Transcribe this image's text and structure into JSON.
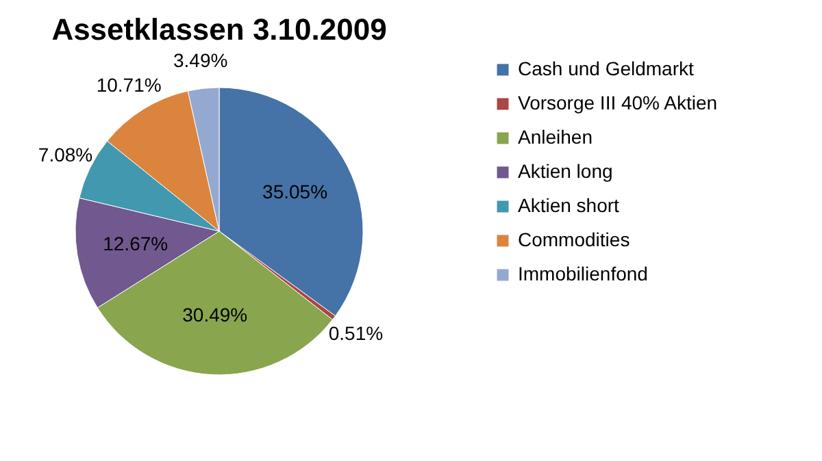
{
  "chart_data": {
    "type": "pie",
    "title": "Assetklassen 3.10.2009",
    "categories": [
      "Cash und Geldmarkt",
      "Vorsorge III 40% Aktien",
      "Anleihen",
      "Aktien long",
      "Aktien short",
      "Commodities",
      "Immobilienfond"
    ],
    "values": [
      35.05,
      0.51,
      30.49,
      12.67,
      7.08,
      10.71,
      3.49
    ],
    "colors": [
      "#4572a7",
      "#aa4643",
      "#89a54e",
      "#71588f",
      "#4198af",
      "#db843d",
      "#93a9cf"
    ],
    "value_labels": [
      "35.05%",
      "0.51%",
      "30.49%",
      "12.67%",
      "7.08%",
      "10.71%",
      "3.49%"
    ],
    "legend": "right"
  }
}
